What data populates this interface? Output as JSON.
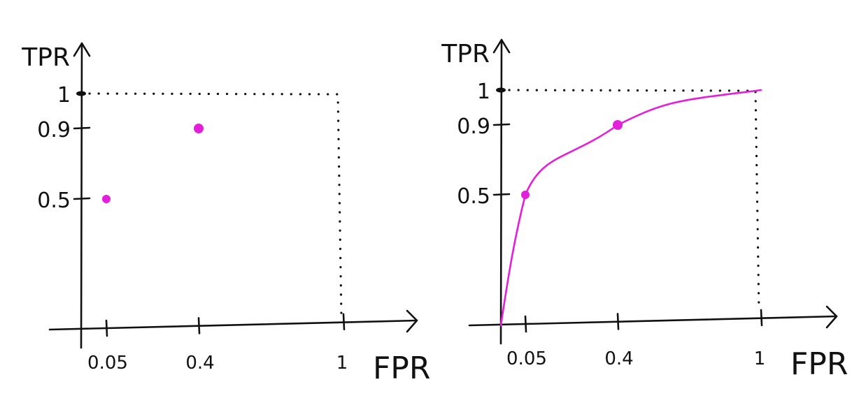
{
  "chart_data": [
    {
      "type": "scatter",
      "xlabel": "FPR",
      "ylabel": "TPR",
      "xlim": [
        0,
        1
      ],
      "ylim": [
        0,
        1
      ],
      "x_ticks": [
        "0.05",
        "0.4",
        "1"
      ],
      "y_ticks": [
        "0.5",
        "0.9",
        "1"
      ],
      "series": [
        {
          "points": [
            {
              "x": 0.05,
              "y": 0.5
            },
            {
              "x": 0.4,
              "y": 0.9
            }
          ]
        }
      ],
      "point_color": "#e41fd9"
    },
    {
      "type": "line",
      "xlabel": "FPR",
      "ylabel": "TPR",
      "xlim": [
        0,
        1
      ],
      "ylim": [
        0,
        1
      ],
      "x_ticks": [
        "0.05",
        "0.4",
        "1"
      ],
      "y_ticks": [
        "0.5",
        "0.9",
        "1"
      ],
      "series": [
        {
          "curve": [
            {
              "x": 0,
              "y": 0
            },
            {
              "x": 0.05,
              "y": 0.5
            },
            {
              "x": 0.4,
              "y": 0.9
            },
            {
              "x": 1,
              "y": 1
            }
          ],
          "points": [
            {
              "x": 0.05,
              "y": 0.5
            },
            {
              "x": 0.4,
              "y": 0.9
            }
          ]
        }
      ],
      "line_color": "#e41fd9"
    }
  ]
}
